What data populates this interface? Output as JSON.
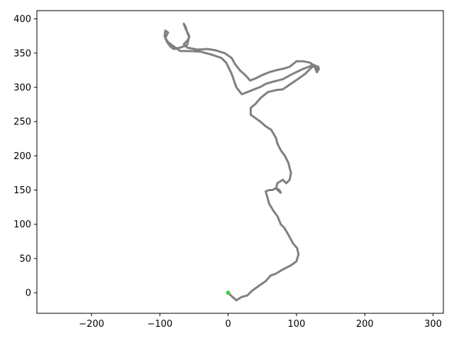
{
  "chart_data": {
    "type": "line",
    "title": "",
    "xlabel": "",
    "ylabel": "",
    "xlim": [
      -280,
      315
    ],
    "ylim": [
      -30,
      412
    ],
    "grid": false,
    "legend": "none",
    "x_ticks": [
      -200,
      -100,
      0,
      100,
      200,
      300
    ],
    "y_ticks": [
      0,
      50,
      100,
      150,
      200,
      250,
      300,
      350,
      400
    ],
    "x_tick_labels": [
      "−200",
      "−100",
      "0",
      "100",
      "200",
      "300"
    ],
    "y_tick_labels": [
      "0",
      "50",
      "100",
      "150",
      "200",
      "250",
      "300",
      "350",
      "400"
    ],
    "series": [
      {
        "color": "#808080",
        "points": [
          [
            0,
            0
          ],
          [
            5,
            -5
          ],
          [
            12,
            -11
          ],
          [
            20,
            -6
          ],
          [
            28,
            -4
          ],
          [
            35,
            3
          ],
          [
            45,
            10
          ],
          [
            55,
            17
          ],
          [
            62,
            25
          ],
          [
            70,
            28
          ],
          [
            80,
            34
          ],
          [
            92,
            40
          ],
          [
            100,
            46
          ],
          [
            103,
            56
          ],
          [
            101,
            65
          ],
          [
            95,
            72
          ],
          [
            88,
            85
          ],
          [
            82,
            95
          ],
          [
            77,
            100
          ],
          [
            72,
            112
          ],
          [
            66,
            120
          ],
          [
            60,
            130
          ],
          [
            55,
            148
          ],
          [
            60,
            150
          ],
          [
            65,
            150
          ],
          [
            70,
            153
          ],
          [
            75,
            150
          ],
          [
            77,
            146
          ],
          [
            70,
            152
          ],
          [
            72,
            160
          ],
          [
            80,
            165
          ],
          [
            85,
            160
          ],
          [
            90,
            165
          ],
          [
            92,
            175
          ],
          [
            88,
            190
          ],
          [
            83,
            200
          ],
          [
            77,
            208
          ],
          [
            72,
            218
          ],
          [
            70,
            226
          ],
          [
            63,
            238
          ],
          [
            55,
            243
          ],
          [
            47,
            250
          ],
          [
            40,
            255
          ],
          [
            33,
            260
          ],
          [
            33,
            270
          ],
          [
            40,
            276
          ],
          [
            48,
            285
          ],
          [
            58,
            293
          ],
          [
            70,
            296
          ],
          [
            80,
            297
          ],
          [
            90,
            304
          ],
          [
            102,
            312
          ],
          [
            113,
            320
          ],
          [
            120,
            327
          ],
          [
            126,
            332
          ],
          [
            132,
            330
          ],
          [
            130,
            326
          ],
          [
            125,
            332
          ],
          [
            120,
            336
          ],
          [
            110,
            338
          ],
          [
            100,
            338
          ],
          [
            90,
            330
          ],
          [
            80,
            327
          ],
          [
            70,
            325
          ],
          [
            60,
            322
          ],
          [
            50,
            318
          ],
          [
            40,
            313
          ],
          [
            32,
            310
          ],
          [
            25,
            318
          ],
          [
            18,
            324
          ],
          [
            10,
            334
          ],
          [
            5,
            343
          ],
          [
            -5,
            350
          ],
          [
            -18,
            354
          ],
          [
            -30,
            356
          ],
          [
            -45,
            355
          ],
          [
            -60,
            358
          ],
          [
            -65,
            363
          ],
          [
            -60,
            368
          ],
          [
            -57,
            373
          ],
          [
            -60,
            380
          ],
          [
            -62,
            388
          ],
          [
            -65,
            393
          ],
          [
            -62,
            385
          ],
          [
            -57,
            375
          ],
          [
            -60,
            362
          ],
          [
            -70,
            358
          ],
          [
            -80,
            356
          ],
          [
            -85,
            360
          ],
          [
            -90,
            367
          ],
          [
            -93,
            375
          ],
          [
            -92,
            383
          ],
          [
            -88,
            380
          ],
          [
            -92,
            372
          ],
          [
            -88,
            366
          ],
          [
            -80,
            360
          ],
          [
            -70,
            353
          ],
          [
            -55,
            353
          ],
          [
            -40,
            352
          ],
          [
            -25,
            348
          ],
          [
            -10,
            343
          ],
          [
            -3,
            336
          ],
          [
            5,
            320
          ],
          [
            12,
            300
          ],
          [
            20,
            290
          ],
          [
            28,
            293
          ],
          [
            38,
            297
          ],
          [
            48,
            301
          ],
          [
            55,
            305
          ],
          [
            65,
            308
          ],
          [
            80,
            312
          ],
          [
            95,
            320
          ],
          [
            110,
            327
          ],
          [
            118,
            330
          ],
          [
            125,
            333
          ],
          [
            133,
            327
          ],
          [
            130,
            322
          ],
          [
            127,
            329
          ]
        ]
      }
    ],
    "start_marker": {
      "x": 0,
      "y": 0,
      "color": "#44cc44"
    }
  }
}
